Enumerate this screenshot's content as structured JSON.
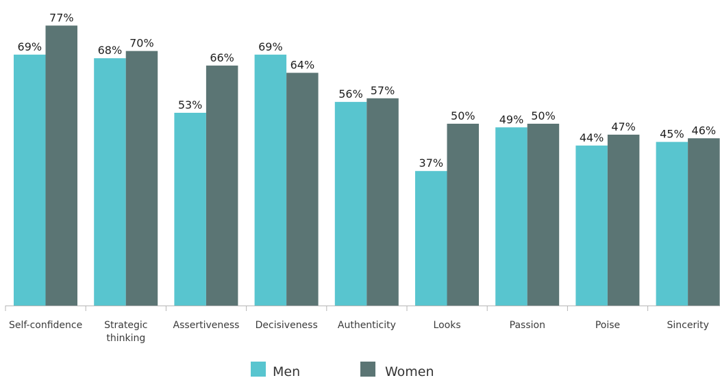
{
  "chart_data": {
    "type": "bar",
    "categories": [
      "Self-confidence",
      "Strategic thinking",
      "Assertiveness",
      "Decisiveness",
      "Authenticity",
      "Looks",
      "Passion",
      "Poise",
      "Sincerity"
    ],
    "series": [
      {
        "name": "Men",
        "values": [
          69,
          68,
          53,
          69,
          56,
          37,
          49,
          44,
          45
        ],
        "labels": [
          "69%",
          "68%",
          "53%",
          "69%",
          "56%",
          "37%",
          "49%",
          "44%",
          "45%"
        ],
        "color": "#58c5cf"
      },
      {
        "name": "Women",
        "values": [
          77,
          70,
          66,
          64,
          57,
          50,
          50,
          47,
          46
        ],
        "labels": [
          "77%",
          "70%",
          "66%",
          "64%",
          "57%",
          "50%",
          "50%",
          "47%",
          "46%"
        ],
        "color": "#5b7574"
      }
    ],
    "title": "",
    "xlabel": "",
    "ylabel": "",
    "ylim": [
      0,
      100
    ],
    "grid": false,
    "legend": "bottom-center"
  }
}
